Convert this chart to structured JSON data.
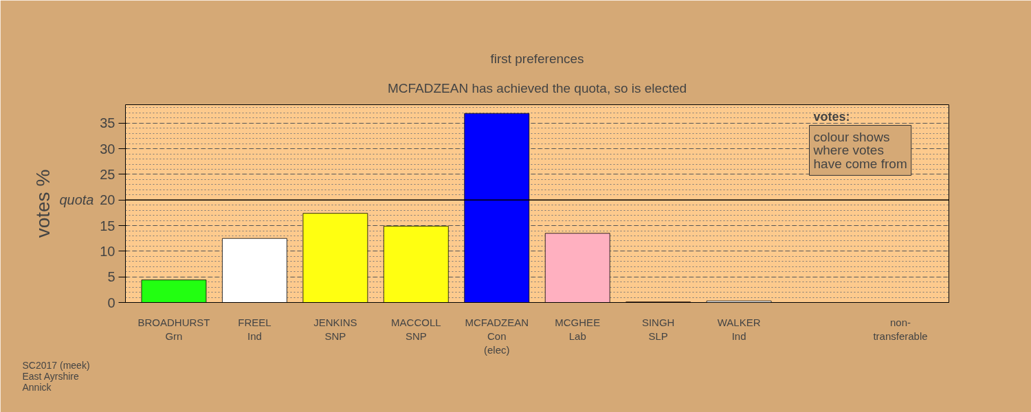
{
  "chart_data": {
    "type": "bar",
    "title": "first preferences",
    "subtitle": "MCFADZEAN has achieved the quota, so is elected",
    "ylabel": "votes %",
    "categories": [
      "BROADHURST\nGrn",
      "FREEL\nInd",
      "JENKINS\nSNP",
      "MACCOLL\nSNP",
      "MCFADZEAN\nCon\n(elec)",
      "MCGHEE\nLab",
      "SINGH\nSLP",
      "WALKER\nInd",
      null,
      "non-\ntransferable"
    ],
    "values": [
      4.4,
      12.5,
      17.4,
      14.9,
      36.9,
      13.5,
      0.1,
      0.3,
      null,
      null
    ],
    "colors": [
      "#22ff11",
      "#ffffff",
      "#ffff11",
      "#ffff11",
      "#0000ff",
      "#ffb0c0",
      "#800000",
      "#ffffff",
      null,
      null
    ],
    "ylim": [
      0,
      38.6
    ],
    "yticks": [
      0,
      5,
      10,
      15,
      20,
      25,
      30,
      35
    ],
    "grid": "y",
    "ref_lines": [
      {
        "axis": "y",
        "value": 20,
        "label": "quota",
        "color": "#000000"
      }
    ],
    "annotations": [
      "votes:",
      "colour shows\nwhere votes\nhave come from",
      "SC2017 (meek)\nEast Ayrshire\nAnnick"
    ]
  }
}
